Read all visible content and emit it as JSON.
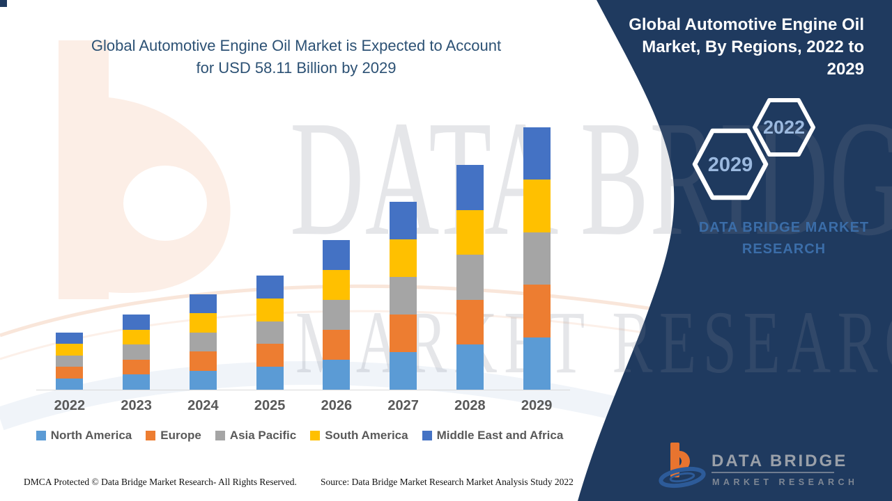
{
  "header": {
    "left_title_lines": [
      "Global Automotive Engine Oil Market is Expected to Account",
      "for USD 58.11 Billion by 2029"
    ],
    "panel_title_lines": [
      "Global Automotive Engine Oil",
      "Market, By Regions, 2022 to",
      "2029"
    ]
  },
  "badges": {
    "hex_top": "2022",
    "hex_bottom": "2029"
  },
  "brand": {
    "panel_text_line1": "DATA BRIDGE MARKET",
    "panel_text_line2": "RESEARCH",
    "watermark_line1": "DATA BRIDGE",
    "watermark_line2": "MARKET RESEARCH",
    "logo_title": "DATA BRIDGE",
    "logo_subtitle": "MARKET RESEARCH"
  },
  "footer": {
    "dmca": "DMCA Protected © Data Bridge Market Research- All Rights Reserved.",
    "source": "Source: Data Bridge Market Research Market Analysis Study 2022"
  },
  "colors": {
    "panel_navy": "#1F3A5F",
    "title_blue": "#2C5174",
    "axis_gray": "#D9D9D9",
    "label_gray": "#595959",
    "hex_text_blue": "#9BB9DF",
    "brand_blue": "#3B6DA8",
    "logo_orange": "#E8742F",
    "logo_swoosh_blue": "#2D5B99"
  },
  "chart_data": {
    "type": "bar",
    "stacked": true,
    "title": "Global Automotive Engine Oil Market is Expected to Account for USD 58.11 Billion by 2029",
    "xlabel": "",
    "ylabel": "",
    "unit": "USD Billion",
    "ylim": [
      0,
      60
    ],
    "grid": false,
    "legend_position": "bottom",
    "values_estimated": true,
    "categories": [
      "2022",
      "2023",
      "2024",
      "2025",
      "2026",
      "2027",
      "2028",
      "2029"
    ],
    "totals": [
      12.6,
      16.6,
      21.1,
      25.2,
      33.1,
      41.5,
      49.7,
      58.11
    ],
    "series": [
      {
        "name": "North America",
        "color": "#5B9BD5",
        "values": [
          2.52,
          3.32,
          4.22,
          5.04,
          6.62,
          8.3,
          9.94,
          11.62
        ]
      },
      {
        "name": "Europe",
        "color": "#ED7D31",
        "values": [
          2.52,
          3.32,
          4.22,
          5.04,
          6.62,
          8.3,
          9.94,
          11.62
        ]
      },
      {
        "name": "Asia Pacific",
        "color": "#A5A5A5",
        "values": [
          2.52,
          3.32,
          4.22,
          5.04,
          6.62,
          8.3,
          9.94,
          11.62
        ]
      },
      {
        "name": "South America",
        "color": "#FFC000",
        "values": [
          2.52,
          3.32,
          4.22,
          5.04,
          6.62,
          8.3,
          9.94,
          11.62
        ]
      },
      {
        "name": "Middle East and Africa",
        "color": "#4472C4",
        "values": [
          2.52,
          3.32,
          4.22,
          5.04,
          6.62,
          8.3,
          9.94,
          11.62
        ]
      }
    ]
  }
}
